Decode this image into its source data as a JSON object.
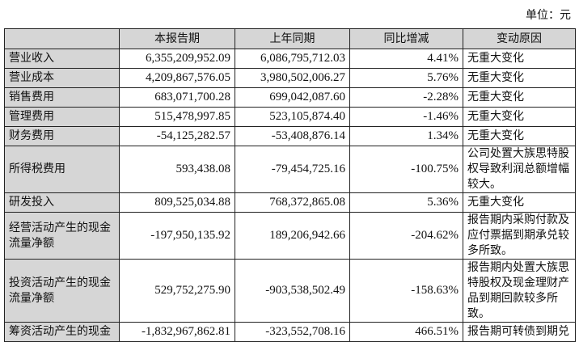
{
  "unit": "单位：元",
  "table": {
    "headers": [
      "",
      "本报告期",
      "上年同期",
      "同比增减",
      "变动原因"
    ],
    "rows": [
      {
        "item": "营业收入",
        "current": "6,355,209,952.09",
        "prior": "6,086,795,712.03",
        "change": "4.41%",
        "reason": "无重大变化"
      },
      {
        "item": "营业成本",
        "current": "4,209,867,576.05",
        "prior": "3,980,502,006.27",
        "change": "5.76%",
        "reason": "无重大变化"
      },
      {
        "item": "销售费用",
        "current": "683,071,700.28",
        "prior": "699,042,087.60",
        "change": "-2.28%",
        "reason": "无重大变化"
      },
      {
        "item": "管理费用",
        "current": "515,478,997.85",
        "prior": "523,105,874.40",
        "change": "-1.46%",
        "reason": "无重大变化"
      },
      {
        "item": "财务费用",
        "current": "-54,125,282.57",
        "prior": "-53,408,876.14",
        "change": "1.34%",
        "reason": "无重大变化"
      },
      {
        "item": "所得税费用",
        "current": "593,438.08",
        "prior": "-79,454,725.16",
        "change": "-100.75%",
        "reason": "公司处置大族思特股权导致利润总额增幅较大。"
      },
      {
        "item": "研发投入",
        "current": "809,525,034.88",
        "prior": "768,372,865.08",
        "change": "5.36%",
        "reason": "无重大变化"
      },
      {
        "item": "经营活动产生的现金流量净额",
        "current": "-197,950,135.92",
        "prior": "189,206,942.66",
        "change": "-204.62%",
        "reason": "报告期内采购付款及应付票据到期承兑较多所致。"
      },
      {
        "item": "投资活动产生的现金流量净额",
        "current": "529,752,275.90",
        "prior": "-903,538,502.49",
        "change": "-158.63%",
        "reason": "报告期内处置大族思特股权及现金理财产品到期回款较多所致。"
      },
      {
        "item": "筹资活动产生的现金",
        "current": "-1,832,967,862.81",
        "prior": "-323,552,708.16",
        "change": "466.51%",
        "reason": "报告期可转债到期兑"
      }
    ]
  }
}
